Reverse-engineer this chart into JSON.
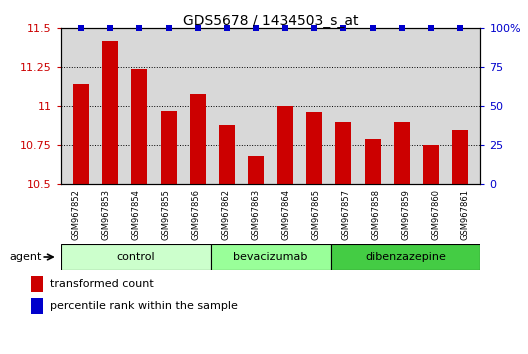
{
  "title": "GDS5678 / 1434503_s_at",
  "samples": [
    "GSM967852",
    "GSM967853",
    "GSM967854",
    "GSM967855",
    "GSM967856",
    "GSM967862",
    "GSM967863",
    "GSM967864",
    "GSM967865",
    "GSM967857",
    "GSM967858",
    "GSM967859",
    "GSM967860",
    "GSM967861"
  ],
  "red_values": [
    11.14,
    11.42,
    11.24,
    10.97,
    11.08,
    10.88,
    10.68,
    11.0,
    10.96,
    10.9,
    10.79,
    10.9,
    10.75,
    10.85
  ],
  "blue_values": [
    100,
    100,
    100,
    100,
    100,
    100,
    100,
    100,
    100,
    100,
    100,
    100,
    100,
    100
  ],
  "ylim": [
    10.5,
    11.5
  ],
  "yticks": [
    10.5,
    10.75,
    11.0,
    11.25,
    11.5
  ],
  "ytick_labels": [
    "10.5",
    "10.75",
    "11",
    "11.25",
    "11.5"
  ],
  "right_yticks": [
    0,
    25,
    50,
    75,
    100
  ],
  "right_ytick_labels": [
    "0",
    "25",
    "50",
    "75",
    "100%"
  ],
  "groups": [
    {
      "label": "control",
      "start": 0,
      "end": 5,
      "color": "#ccffcc"
    },
    {
      "label": "bevacizumab",
      "start": 5,
      "end": 9,
      "color": "#99ff99"
    },
    {
      "label": "dibenzazepine",
      "start": 9,
      "end": 14,
      "color": "#44cc44"
    }
  ],
  "agent_label": "agent",
  "bar_color": "#cc0000",
  "dot_color": "#0000cc",
  "bar_width": 0.55,
  "legend_red_label": "transformed count",
  "legend_blue_label": "percentile rank within the sample",
  "background_color": "#ffffff",
  "plot_bg_color": "#d8d8d8",
  "tick_bg_color": "#d0d0d0"
}
